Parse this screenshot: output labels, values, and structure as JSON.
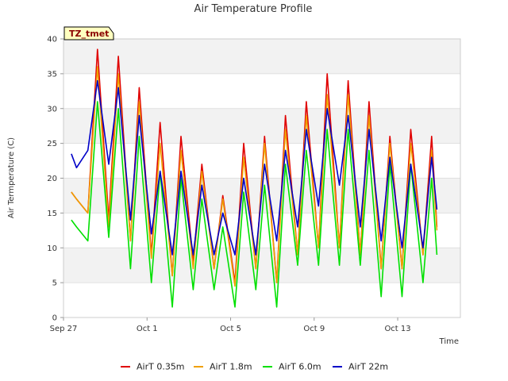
{
  "chart_data": {
    "type": "line",
    "title": "Air Temperature Profile",
    "xlabel": "Time",
    "ylabel": "Air Termperature (C)",
    "site_tag": "TZ_tmet",
    "x_range": [
      "2016-09-27",
      "2016-10-16"
    ],
    "x_ticks": [
      {
        "label": "Sep 27",
        "date": "2016-09-27"
      },
      {
        "label": "Oct 1",
        "date": "2016-10-01"
      },
      {
        "label": "Oct 5",
        "date": "2016-10-05"
      },
      {
        "label": "Oct 9",
        "date": "2016-10-09"
      },
      {
        "label": "Oct 13",
        "date": "2016-10-13"
      }
    ],
    "ylim": [
      0,
      40
    ],
    "y_ticks": [
      0,
      5,
      10,
      15,
      20,
      25,
      30,
      35,
      40
    ],
    "grid": true,
    "legend_position": "bottom",
    "x": [
      "2016-09-27 09:00",
      "2016-09-27 15:00",
      "2016-09-28 04:00",
      "2016-09-28 15:00",
      "2016-09-29 04:00",
      "2016-09-29 15:00",
      "2016-09-30 05:00",
      "2016-09-30 15:00",
      "2016-10-01 05:00",
      "2016-10-01 15:00",
      "2016-10-02 05:00",
      "2016-10-02 15:00",
      "2016-10-03 05:00",
      "2016-10-03 15:00",
      "2016-10-04 05:00",
      "2016-10-04 15:00",
      "2016-10-05 05:00",
      "2016-10-05 15:00",
      "2016-10-06 05:00",
      "2016-10-06 15:00",
      "2016-10-07 05:00",
      "2016-10-07 15:00",
      "2016-10-08 05:00",
      "2016-10-08 15:00",
      "2016-10-09 05:00",
      "2016-10-09 15:00",
      "2016-10-10 05:00",
      "2016-10-10 15:00",
      "2016-10-11 05:00",
      "2016-10-11 15:00",
      "2016-10-12 05:00",
      "2016-10-12 15:00",
      "2016-10-13 05:00",
      "2016-10-13 15:00",
      "2016-10-14 05:00",
      "2016-10-14 15:00",
      "2016-10-14 21:00"
    ],
    "series": [
      {
        "name": "AirT 0.35m",
        "color": "#e00000",
        "values": [
          18,
          17,
          15,
          38.5,
          14,
          37.5,
          11,
          33,
          9,
          28,
          6,
          26,
          8,
          22,
          7,
          17.5,
          5,
          25,
          7,
          26,
          5,
          29,
          9,
          31,
          10,
          35,
          10,
          34,
          9,
          31,
          7,
          26,
          7,
          27,
          9,
          26,
          13
        ]
      },
      {
        "name": "AirT 1.8m",
        "color": "#f0a000",
        "values": [
          18,
          17,
          15,
          36,
          13,
          35,
          11,
          31,
          8.5,
          25,
          6,
          24,
          7,
          21,
          7,
          17,
          4.5,
          23,
          7,
          25,
          5,
          27,
          9,
          29,
          10,
          32,
          10,
          32,
          9,
          29,
          7,
          25,
          7,
          25,
          9,
          24,
          12.5
        ]
      },
      {
        "name": "AirT 6.0m",
        "color": "#00e000",
        "values": [
          14,
          13,
          11,
          31,
          11.5,
          30,
          7,
          26,
          5,
          21,
          1.5,
          20,
          4,
          17,
          4,
          13,
          1.5,
          18,
          4,
          19,
          1.5,
          22,
          7.5,
          24,
          7.5,
          27,
          7.5,
          27,
          7.5,
          24,
          3,
          22,
          3,
          22,
          5,
          20,
          9
        ]
      },
      {
        "name": "AirT 22m",
        "color": "#0000c8",
        "values": [
          23.5,
          21.5,
          24,
          34,
          22,
          33,
          14,
          29,
          12,
          21,
          9,
          21,
          9,
          19,
          9,
          15,
          9,
          20,
          9,
          22,
          11,
          24,
          13,
          27,
          16,
          30,
          19,
          29,
          13,
          27,
          11,
          23,
          10,
          22,
          10,
          23,
          15.5
        ]
      }
    ]
  }
}
